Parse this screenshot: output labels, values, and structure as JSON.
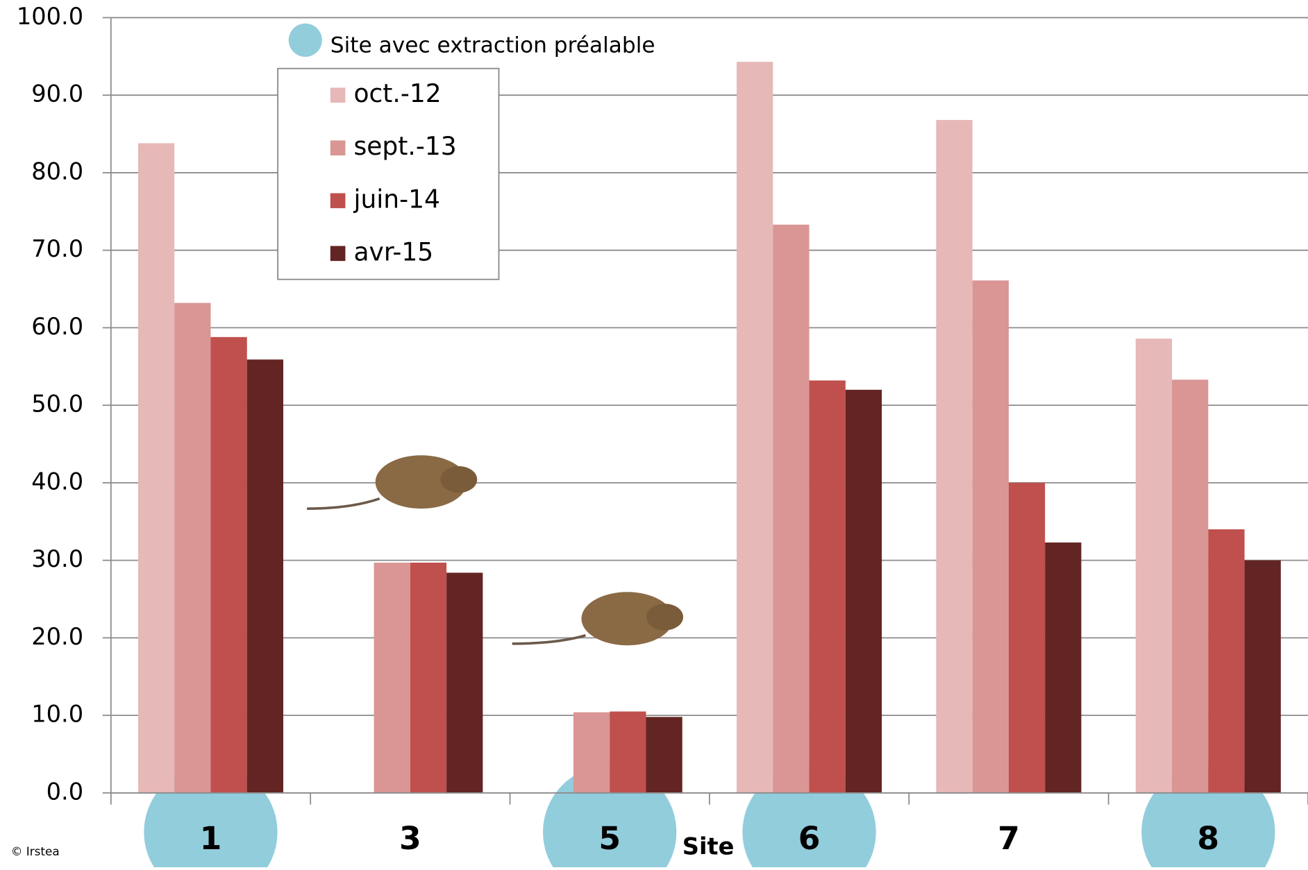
{
  "chart_data": {
    "type": "bar",
    "categories": [
      "1",
      "3",
      "5",
      "6",
      "7",
      "8"
    ],
    "series": [
      {
        "name": "oct.-12",
        "color": "#e6b8b7",
        "values": [
          83.8,
          null,
          null,
          94.3,
          86.8,
          58.6
        ]
      },
      {
        "name": "sept.-13",
        "color": "#d99694",
        "values": [
          63.2,
          29.7,
          10.4,
          73.3,
          66.1,
          53.3
        ]
      },
      {
        "name": "juin-14",
        "color": "#c0504d",
        "values": [
          58.8,
          29.7,
          10.5,
          53.2,
          40.0,
          34.0
        ]
      },
      {
        "name": "avr-15",
        "color": "#632523",
        "values": [
          55.9,
          28.4,
          9.8,
          52.0,
          32.3,
          30.0
        ]
      }
    ],
    "ylim": [
      0,
      100
    ],
    "yticks": [
      {
        "value": 0,
        "label": "0.0"
      },
      {
        "value": 10,
        "label": "10.0"
      },
      {
        "value": 20,
        "label": "20.0"
      },
      {
        "value": 30,
        "label": "30.0"
      },
      {
        "value": 40,
        "label": "40.0"
      },
      {
        "value": 50,
        "label": "50.0"
      },
      {
        "value": 60,
        "label": "60.0"
      },
      {
        "value": 70,
        "label": "70.0"
      },
      {
        "value": 80,
        "label": "80.0"
      },
      {
        "value": 90,
        "label": "90.0"
      },
      {
        "value": 100,
        "label": "100.0"
      }
    ],
    "grid": true,
    "xlabel": "Site",
    "highlighted": [
      true,
      false,
      true,
      true,
      false,
      true
    ],
    "highlight_color": "#92cddc",
    "highlight_label": "Site avec extraction préalable",
    "credit": "© Irstea"
  }
}
